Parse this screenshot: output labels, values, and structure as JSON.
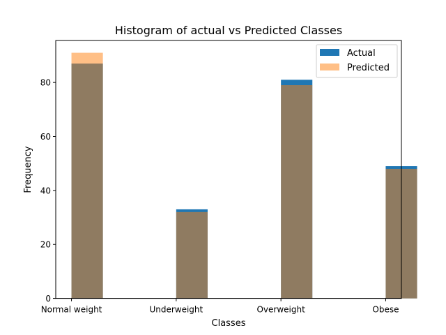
{
  "chart_data": {
    "type": "bar",
    "title": "Histogram of actual vs Predicted Classes",
    "xlabel": "Classes",
    "ylabel": "Frequency",
    "categories": [
      "Normal weight",
      "Underweight",
      "Overweight",
      "Obese"
    ],
    "x_positions": [
      0,
      1,
      2,
      3
    ],
    "bar_edges": [
      0,
      0.3,
      1,
      1.3,
      2,
      2.3,
      2.7,
      3
    ],
    "x_ticks": [
      0,
      1,
      2,
      3
    ],
    "y_ticks": [
      0,
      20,
      40,
      60,
      80
    ],
    "xlim": [
      -0.15,
      3.15
    ],
    "ylim": [
      0,
      95.55
    ],
    "series": [
      {
        "name": "Actual",
        "values": [
          87,
          33,
          81,
          49
        ],
        "color": "#1f77b4",
        "opacity": 1
      },
      {
        "name": "Predicted",
        "values": [
          91,
          32,
          79,
          48
        ],
        "color": "#ff7f0e",
        "opacity": 0.5
      }
    ],
    "grid": false,
    "legend_position": "top-right"
  }
}
